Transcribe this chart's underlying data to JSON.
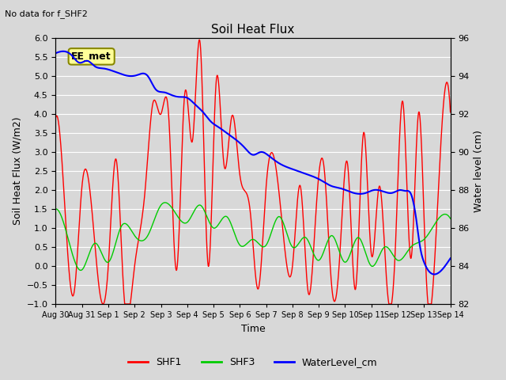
{
  "title": "Soil Heat Flux",
  "top_left_text": "No data for f_SHF2",
  "xlabel": "Time",
  "ylabel_left": "Soil Heat Flux (W/m2)",
  "ylabel_right": "Water level (cm)",
  "ylim_left": [
    -1.0,
    6.0
  ],
  "ylim_right": [
    82,
    96
  ],
  "x_tick_labels": [
    "Aug 30",
    "Aug 31",
    "Sep 1",
    "Sep 2",
    "Sep 3",
    "Sep 4",
    "Sep 5",
    "Sep 6",
    "Sep 7",
    "Sep 8",
    "Sep 9",
    "Sep 10",
    "Sep 11",
    "Sep 12",
    "Sep 13",
    "Sep 14"
  ],
  "background_color": "#d8d8d8",
  "grid_color": "#ffffff",
  "shf1_color": "#ff0000",
  "shf3_color": "#00cc00",
  "water_color": "#0000ff",
  "ee_met_box_color": "#ffff99",
  "ee_met_border_color": "#888800",
  "legend_items": [
    "SHF1",
    "SHF3",
    "WaterLevel_cm"
  ]
}
